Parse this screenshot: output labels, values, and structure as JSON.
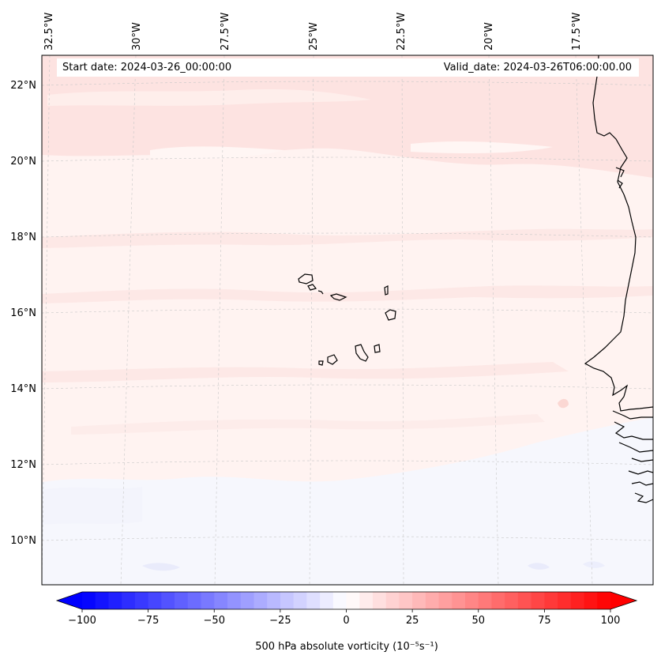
{
  "map": {
    "start_date": "Start date: 2024-03-26_00:00:00",
    "valid_date": "Valid_date: 2024-03-26T06:00:00.00",
    "lon_labels": [
      "32.5°W",
      "30°W",
      "27.5°W",
      "25°W",
      "22.5°W",
      "20°W",
      "17.5°W"
    ],
    "lat_labels": [
      "22°N",
      "20°N",
      "18°N",
      "16°N",
      "14°N",
      "12°N",
      "10°N"
    ],
    "gridlines": true
  },
  "colorbar": {
    "label": "500 hPa absolute vorticity (10⁻⁵s⁻¹)",
    "ticks": [
      "−100",
      "−75",
      "−50",
      "−25",
      "0",
      "25",
      "50",
      "75",
      "100"
    ],
    "tick_values": [
      -100,
      -75,
      -50,
      -25,
      0,
      25,
      50,
      75,
      100
    ],
    "range": [
      -100,
      100
    ],
    "colormap": "bwr",
    "extend": "both",
    "colors": {
      "min": "#0000ff",
      "mid": "#ffffff",
      "max": "#ff0000"
    }
  },
  "field": {
    "dominant_range": [
      -5,
      12
    ],
    "colors": {
      "light_red": "#fde3e1",
      "pale_red": "#fff3f1",
      "pale_blue": "#f6f7fd",
      "blue_patch": "#e9ebfb"
    }
  }
}
